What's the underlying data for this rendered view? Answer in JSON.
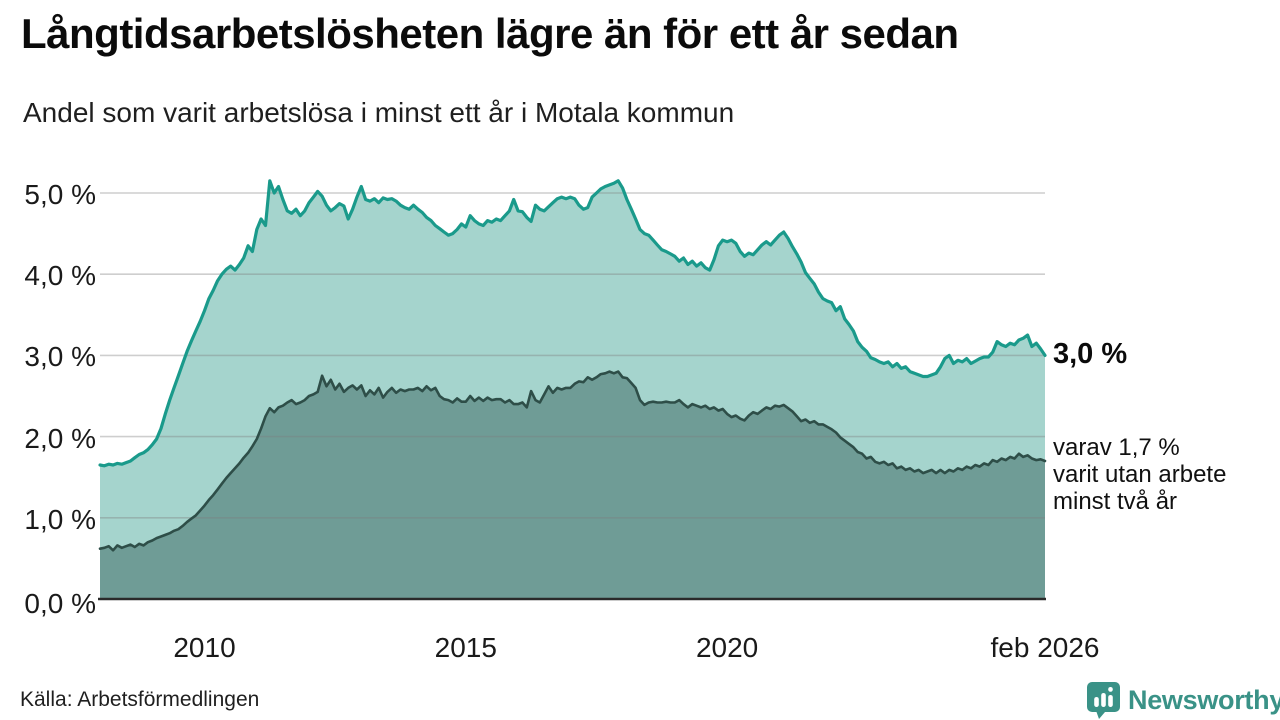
{
  "title": "Långtidsarbetslösheten lägre än för ett år sedan",
  "subtitle": "Andel som varit arbetslösa i minst ett år i Motala kommun",
  "source": "Källa: Arbetsförmedlingen",
  "branding": {
    "name": "Newsworthy",
    "color": "#3a9287",
    "icon": "bar-chart-speech-bubble-icon"
  },
  "annotations": {
    "end_label_primary": "3,0 %",
    "end_label_secondary_lines": [
      "varav 1,7 %",
      "varit utan arbete",
      "minst två år"
    ]
  },
  "chart_data": {
    "type": "area",
    "x_start": "2008-01",
    "x_end": "2026-02",
    "frequency": "monthly",
    "unit": "%",
    "grid": true,
    "ylim": [
      0,
      5.4
    ],
    "y_ticks": [
      {
        "label": "0,0 %",
        "v": 0
      },
      {
        "label": "1,0 %",
        "v": 1
      },
      {
        "label": "2,0 %",
        "v": 2
      },
      {
        "label": "3,0 %",
        "v": 3
      },
      {
        "label": "4,0 %",
        "v": 4
      },
      {
        "label": "5,0 %",
        "v": 5
      }
    ],
    "x_ticks": [
      {
        "label": "2010",
        "month_index": 24
      },
      {
        "label": "2015",
        "month_index": 84
      },
      {
        "label": "2020",
        "month_index": 144
      },
      {
        "label": "feb 2026",
        "month_index": 217
      }
    ],
    "colors": {
      "grid": "rgba(125,125,125,0.38)",
      "axis": "#2a2a2a"
    },
    "series": [
      {
        "name": "Arbetslösa minst ett år",
        "end_value": 3.0,
        "fill": "#a5d4cd",
        "stroke": "#1a9a8b",
        "stroke_width": 3.2,
        "values": [
          1.65,
          1.64,
          1.66,
          1.65,
          1.67,
          1.66,
          1.68,
          1.7,
          1.74,
          1.78,
          1.8,
          1.84,
          1.9,
          1.97,
          2.1,
          2.28,
          2.45,
          2.6,
          2.75,
          2.9,
          3.05,
          3.18,
          3.3,
          3.42,
          3.55,
          3.7,
          3.8,
          3.92,
          4.0,
          4.06,
          4.1,
          4.05,
          4.12,
          4.2,
          4.35,
          4.28,
          4.55,
          4.68,
          4.6,
          5.15,
          5.0,
          5.08,
          4.92,
          4.78,
          4.75,
          4.8,
          4.72,
          4.78,
          4.88,
          4.95,
          5.02,
          4.96,
          4.85,
          4.78,
          4.82,
          4.87,
          4.84,
          4.68,
          4.8,
          4.95,
          5.08,
          4.92,
          4.9,
          4.93,
          4.88,
          4.94,
          4.92,
          4.93,
          4.9,
          4.85,
          4.82,
          4.8,
          4.85,
          4.8,
          4.76,
          4.7,
          4.66,
          4.6,
          4.56,
          4.52,
          4.48,
          4.5,
          4.55,
          4.62,
          4.58,
          4.72,
          4.66,
          4.62,
          4.6,
          4.66,
          4.64,
          4.68,
          4.66,
          4.72,
          4.78,
          4.92,
          4.78,
          4.77,
          4.7,
          4.65,
          4.85,
          4.8,
          4.78,
          4.83,
          4.88,
          4.93,
          4.95,
          4.93,
          4.95,
          4.93,
          4.85,
          4.8,
          4.82,
          4.95,
          5.0,
          5.05,
          5.08,
          5.1,
          5.12,
          5.15,
          5.06,
          4.92,
          4.8,
          4.68,
          4.55,
          4.5,
          4.48,
          4.42,
          4.36,
          4.3,
          4.28,
          4.25,
          4.22,
          4.16,
          4.2,
          4.12,
          4.16,
          4.1,
          4.14,
          4.08,
          4.05,
          4.18,
          4.35,
          4.42,
          4.4,
          4.42,
          4.38,
          4.28,
          4.22,
          4.26,
          4.24,
          4.3,
          4.36,
          4.4,
          4.36,
          4.42,
          4.48,
          4.52,
          4.44,
          4.34,
          4.25,
          4.15,
          4.02,
          3.95,
          3.88,
          3.78,
          3.7,
          3.67,
          3.65,
          3.55,
          3.6,
          3.45,
          3.38,
          3.3,
          3.17,
          3.1,
          3.05,
          2.97,
          2.95,
          2.92,
          2.9,
          2.92,
          2.86,
          2.9,
          2.84,
          2.86,
          2.8,
          2.78,
          2.76,
          2.74,
          2.74,
          2.76,
          2.78,
          2.86,
          2.96,
          3.0,
          2.9,
          2.94,
          2.92,
          2.96,
          2.9,
          2.93,
          2.96,
          2.98,
          2.98,
          3.04,
          3.17,
          3.13,
          3.11,
          3.15,
          3.13,
          3.19,
          3.21,
          3.25,
          3.11,
          3.15,
          3.08,
          3.0
        ]
      },
      {
        "name": "Arbetslösa minst två år",
        "end_value": 1.7,
        "fill": "#6f9c96",
        "stroke": "#2e4e48",
        "stroke_width": 2.6,
        "values": [
          0.62,
          0.63,
          0.65,
          0.6,
          0.66,
          0.63,
          0.65,
          0.67,
          0.64,
          0.68,
          0.66,
          0.7,
          0.72,
          0.75,
          0.77,
          0.79,
          0.81,
          0.84,
          0.86,
          0.9,
          0.95,
          0.99,
          1.03,
          1.09,
          1.15,
          1.22,
          1.28,
          1.35,
          1.42,
          1.49,
          1.55,
          1.61,
          1.67,
          1.74,
          1.8,
          1.88,
          1.97,
          2.1,
          2.25,
          2.35,
          2.3,
          2.36,
          2.38,
          2.42,
          2.45,
          2.4,
          2.42,
          2.45,
          2.5,
          2.52,
          2.55,
          2.75,
          2.62,
          2.7,
          2.58,
          2.65,
          2.55,
          2.6,
          2.63,
          2.58,
          2.63,
          2.5,
          2.57,
          2.52,
          2.6,
          2.48,
          2.55,
          2.6,
          2.54,
          2.58,
          2.56,
          2.58,
          2.58,
          2.6,
          2.56,
          2.62,
          2.57,
          2.6,
          2.5,
          2.46,
          2.45,
          2.42,
          2.47,
          2.43,
          2.43,
          2.5,
          2.44,
          2.48,
          2.44,
          2.48,
          2.45,
          2.46,
          2.46,
          2.42,
          2.45,
          2.4,
          2.4,
          2.42,
          2.36,
          2.56,
          2.45,
          2.42,
          2.52,
          2.62,
          2.54,
          2.6,
          2.58,
          2.6,
          2.6,
          2.65,
          2.68,
          2.67,
          2.73,
          2.7,
          2.73,
          2.77,
          2.78,
          2.8,
          2.78,
          2.8,
          2.73,
          2.72,
          2.66,
          2.6,
          2.45,
          2.39,
          2.42,
          2.43,
          2.42,
          2.42,
          2.43,
          2.42,
          2.42,
          2.45,
          2.4,
          2.36,
          2.4,
          2.38,
          2.36,
          2.38,
          2.34,
          2.36,
          2.32,
          2.34,
          2.28,
          2.24,
          2.26,
          2.22,
          2.2,
          2.26,
          2.3,
          2.28,
          2.32,
          2.36,
          2.34,
          2.38,
          2.37,
          2.39,
          2.35,
          2.31,
          2.25,
          2.19,
          2.21,
          2.17,
          2.19,
          2.15,
          2.15,
          2.12,
          2.09,
          2.05,
          1.99,
          1.95,
          1.91,
          1.87,
          1.81,
          1.79,
          1.73,
          1.75,
          1.69,
          1.67,
          1.69,
          1.65,
          1.67,
          1.61,
          1.63,
          1.59,
          1.61,
          1.57,
          1.59,
          1.55,
          1.57,
          1.59,
          1.55,
          1.59,
          1.55,
          1.59,
          1.57,
          1.61,
          1.59,
          1.63,
          1.61,
          1.65,
          1.63,
          1.67,
          1.65,
          1.71,
          1.69,
          1.73,
          1.71,
          1.75,
          1.73,
          1.79,
          1.75,
          1.77,
          1.73,
          1.71,
          1.72,
          1.7
        ]
      }
    ]
  }
}
